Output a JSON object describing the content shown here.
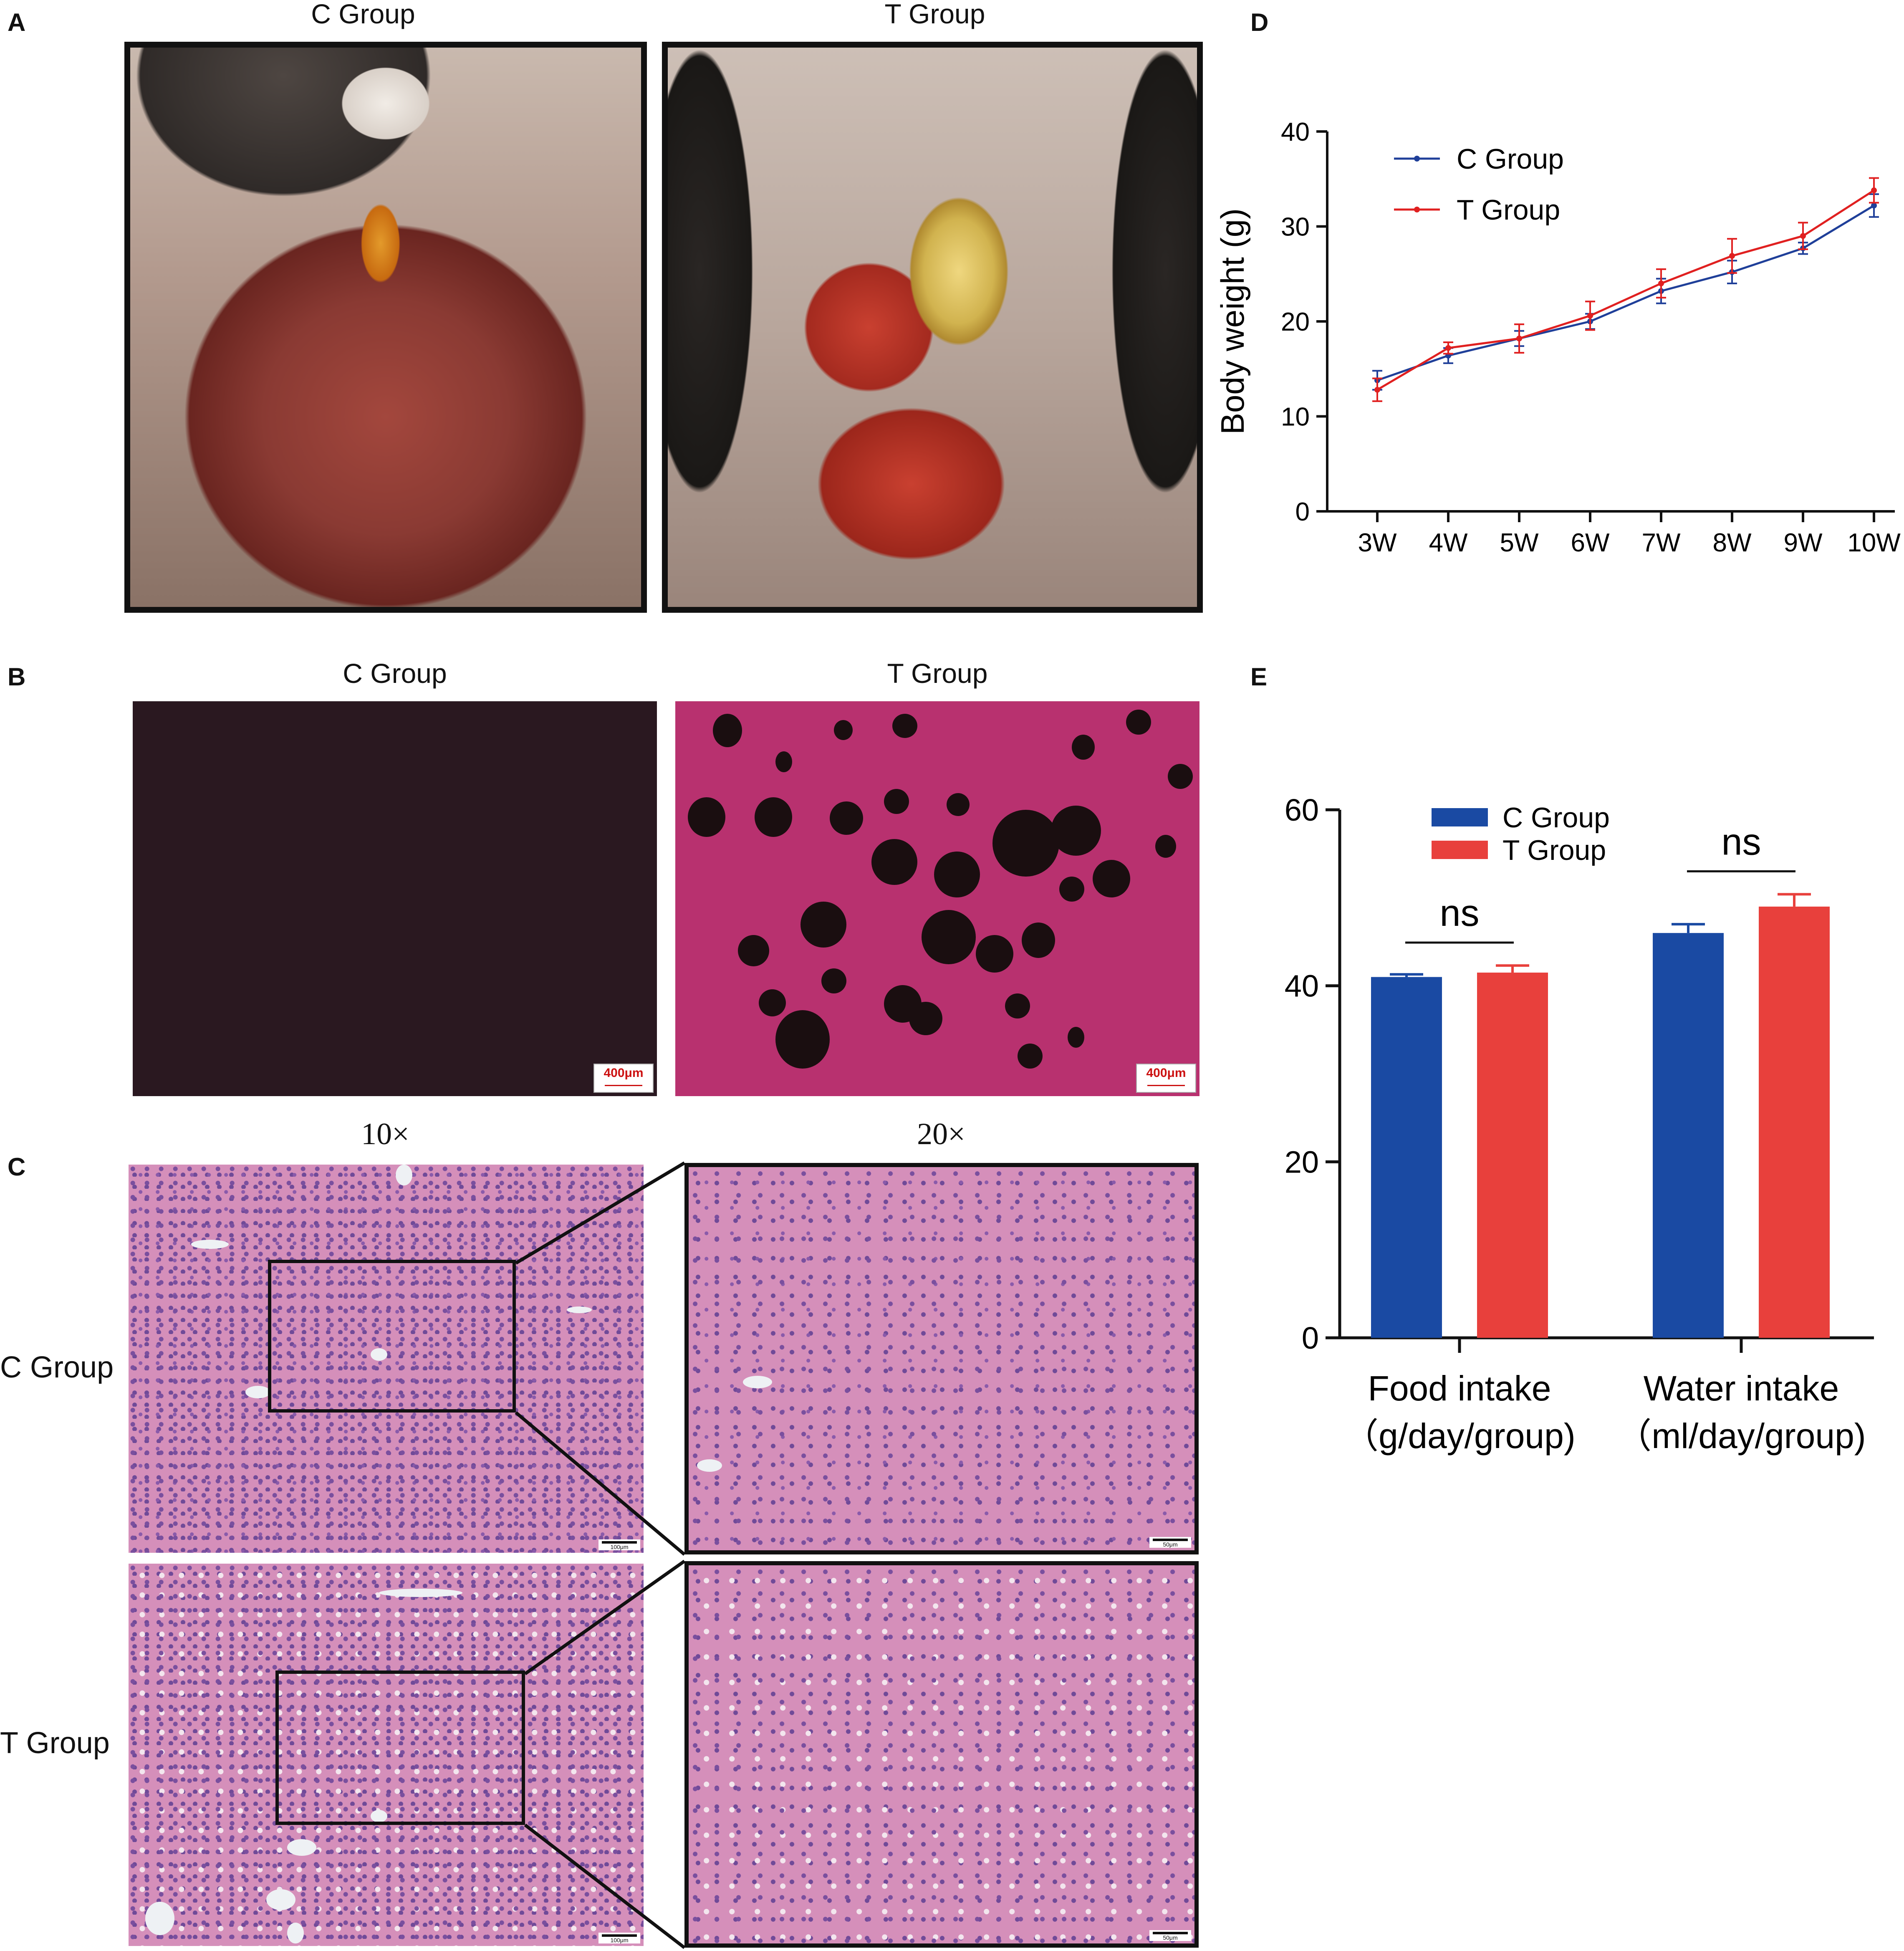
{
  "panel_letters": {
    "a": "A",
    "b": "B",
    "c": "C",
    "d": "D",
    "e": "E"
  },
  "panel_a": {
    "left_title": "C Group",
    "right_title": "T Group"
  },
  "panel_b": {
    "left_title": "C Group",
    "right_title": "T Group",
    "left_scale": "400μm",
    "right_scale": "400μm"
  },
  "panel_c": {
    "col_left": "10×",
    "col_right": "20×",
    "row_top": "C Group",
    "row_bottom": "T Group",
    "scale_10x": "100μm",
    "scale_20x": "50μm"
  },
  "colors": {
    "c_group_line": "#1f3f99",
    "t_group_line": "#e02020",
    "c_group_bar": "#1a4aa3",
    "t_group_bar": "#e8403c"
  },
  "chart_data": [
    {
      "panel": "D",
      "type": "line",
      "ylabel": "Body weight (g)",
      "xlabel": "",
      "x": [
        "3W",
        "4W",
        "5W",
        "6W",
        "7W",
        "8W",
        "9W",
        "10W"
      ],
      "ylim": [
        0,
        40
      ],
      "yticks": [
        0,
        10,
        20,
        30,
        40
      ],
      "legend_position": "top-left",
      "series": [
        {
          "name": "C Group",
          "color": "#1f3f99",
          "values": [
            13.8,
            16.4,
            18.2,
            20.0,
            23.2,
            25.2,
            27.7,
            32.2
          ],
          "errors": [
            1.0,
            0.8,
            0.8,
            0.8,
            1.3,
            1.2,
            0.6,
            1.2
          ]
        },
        {
          "name": "T Group",
          "color": "#e02020",
          "values": [
            12.8,
            17.2,
            18.2,
            20.6,
            24.0,
            26.9,
            29.0,
            33.8
          ],
          "errors": [
            1.2,
            0.6,
            1.5,
            1.5,
            1.5,
            1.8,
            1.4,
            1.3
          ]
        }
      ]
    },
    {
      "panel": "E",
      "type": "bar",
      "categories": [
        "Food intake\n（g/day/group)",
        "Water intake\n（ml/day/group)"
      ],
      "category_lines": [
        [
          "Food intake",
          "（g/day/group)"
        ],
        [
          "Water intake",
          "（ml/day/group)"
        ]
      ],
      "ylim": [
        0,
        60
      ],
      "yticks": [
        0,
        20,
        40,
        60
      ],
      "legend_position": "top-left",
      "series": [
        {
          "name": "C Group",
          "color": "#1a4aa3",
          "values": [
            41.0,
            46.0
          ],
          "errors": [
            0.3,
            1.0
          ]
        },
        {
          "name": "T Group",
          "color": "#e8403c",
          "values": [
            41.5,
            49.0
          ],
          "errors": [
            0.8,
            1.4
          ]
        }
      ],
      "annotations": [
        "ns",
        "ns"
      ]
    }
  ]
}
